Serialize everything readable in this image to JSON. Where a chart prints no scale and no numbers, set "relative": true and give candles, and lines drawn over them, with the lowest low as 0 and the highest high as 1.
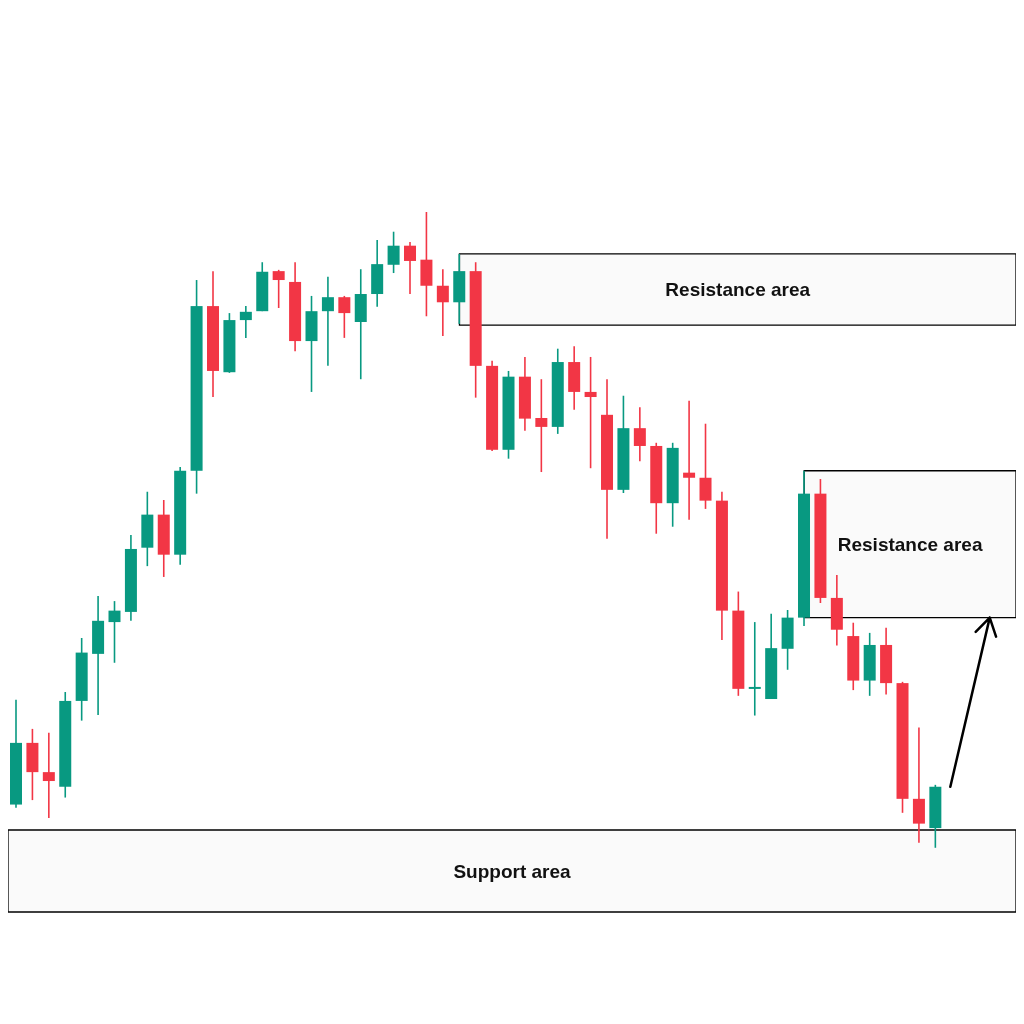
{
  "chart_data": {
    "type": "candlestick",
    "relative": true,
    "categories": [
      null,
      null,
      null,
      null,
      null,
      null,
      null,
      null,
      null,
      null,
      null,
      null,
      null,
      null,
      null,
      null,
      null,
      null,
      null,
      null,
      null,
      null,
      null,
      null,
      null,
      null,
      null,
      null,
      null,
      null,
      null,
      null,
      null,
      null,
      null,
      null,
      null,
      null,
      null,
      null,
      null,
      null,
      null,
      null,
      null,
      null,
      null,
      null,
      null,
      null,
      null,
      null,
      null,
      null,
      null,
      null,
      null
    ],
    "ohlc": [
      [
        0.068,
        0.233,
        0.063,
        0.165
      ],
      [
        0.165,
        0.187,
        0.075,
        0.119
      ],
      [
        0.119,
        0.181,
        0.047,
        0.105
      ],
      [
        0.096,
        0.245,
        0.079,
        0.231
      ],
      [
        0.231,
        0.33,
        0.2,
        0.307
      ],
      [
        0.305,
        0.396,
        0.209,
        0.357
      ],
      [
        0.355,
        0.388,
        0.291,
        0.373
      ],
      [
        0.371,
        0.492,
        0.357,
        0.47
      ],
      [
        0.472,
        0.56,
        0.443,
        0.524
      ],
      [
        0.524,
        0.547,
        0.426,
        0.461
      ],
      [
        0.461,
        0.599,
        0.445,
        0.593
      ],
      [
        0.593,
        0.893,
        0.557,
        0.852
      ],
      [
        0.852,
        0.907,
        0.709,
        0.75
      ],
      [
        0.748,
        0.841,
        0.747,
        0.83
      ],
      [
        0.83,
        0.852,
        0.802,
        0.843
      ],
      [
        0.844,
        0.921,
        0.844,
        0.906
      ],
      [
        0.907,
        0.909,
        0.849,
        0.893
      ],
      [
        0.89,
        0.921,
        0.781,
        0.797
      ],
      [
        0.797,
        0.868,
        0.717,
        0.844
      ],
      [
        0.844,
        0.898,
        0.758,
        0.866
      ],
      [
        0.866,
        0.868,
        0.802,
        0.841
      ],
      [
        0.827,
        0.91,
        0.737,
        0.871
      ],
      [
        0.871,
        0.956,
        0.851,
        0.918
      ],
      [
        0.917,
        0.969,
        0.904,
        0.947
      ],
      [
        0.947,
        0.953,
        0.871,
        0.923
      ],
      [
        0.925,
        1,
        0.836,
        0.884
      ],
      [
        0.884,
        0.91,
        0.805,
        0.858
      ],
      [
        0.858,
        0.934,
        0.824,
        0.907
      ],
      [
        0.907,
        0.921,
        0.708,
        0.758
      ],
      [
        0.758,
        0.766,
        0.624,
        0.626
      ],
      [
        0.626,
        0.75,
        0.612,
        0.741
      ],
      [
        0.741,
        0.772,
        0.656,
        0.675
      ],
      [
        0.676,
        0.737,
        0.591,
        0.662
      ],
      [
        0.662,
        0.785,
        0.651,
        0.764
      ],
      [
        0.764,
        0.789,
        0.689,
        0.717
      ],
      [
        0.717,
        0.772,
        0.597,
        0.709
      ],
      [
        0.681,
        0.737,
        0.486,
        0.563
      ],
      [
        0.563,
        0.711,
        0.558,
        0.66
      ],
      [
        0.66,
        0.693,
        0.608,
        0.632
      ],
      [
        0.632,
        0.637,
        0.494,
        0.542
      ],
      [
        0.542,
        0.637,
        0.505,
        0.629
      ],
      [
        0.59,
        0.703,
        0.516,
        0.582
      ],
      [
        0.582,
        0.667,
        0.533,
        0.546
      ],
      [
        0.546,
        0.56,
        0.327,
        0.373
      ],
      [
        0.373,
        0.403,
        0.239,
        0.25
      ],
      [
        0.25,
        0.355,
        0.208,
        0.253
      ],
      [
        0.234,
        0.368,
        0.234,
        0.314
      ],
      [
        0.313,
        0.374,
        0.28,
        0.362
      ],
      [
        0.362,
        0.593,
        0.349,
        0.557
      ],
      [
        0.557,
        0.58,
        0.385,
        0.393
      ],
      [
        0.393,
        0.429,
        0.318,
        0.343
      ],
      [
        0.333,
        0.354,
        0.248,
        0.263
      ],
      [
        0.263,
        0.338,
        0.239,
        0.319
      ],
      [
        0.319,
        0.346,
        0.241,
        0.259
      ],
      [
        0.259,
        0.261,
        0.055,
        0.077
      ],
      [
        0.077,
        0.189,
        0.008,
        0.038
      ],
      [
        0.031,
        0.099,
        0,
        0.096
      ]
    ],
    "colors": [
      "#089981",
      "#f23645",
      "#f23645",
      "#089981",
      "#089981",
      "#089981",
      "#089981",
      "#089981",
      "#089981",
      "#f23645",
      "#089981",
      "#089981",
      "#f23645",
      "#089981",
      "#089981",
      "#089981",
      "#f23645",
      "#f23645",
      "#089981",
      "#089981",
      "#f23645",
      "#089981",
      "#089981",
      "#089981",
      "#f23645",
      "#f23645",
      "#f23645",
      "#089981",
      "#f23645",
      "#f23645",
      "#089981",
      "#f23645",
      "#f23645",
      "#089981",
      "#f23645",
      "#f23645",
      "#f23645",
      "#089981",
      "#f23645",
      "#f23645",
      "#089981",
      "#f23645",
      "#f23645",
      "#f23645",
      "#f23645",
      "#089981",
      "#089981",
      "#089981",
      "#089981",
      "#f23645",
      "#f23645",
      "#f23645",
      "#089981",
      "#f23645",
      "#f23645",
      "#f23645",
      "#089981"
    ],
    "bands": [
      {
        "axis": "y",
        "from": 0.822,
        "to": 0.934,
        "label": "Resistance area"
      },
      {
        "axis": "y",
        "from": 0.362,
        "to": 0.593,
        "label": "Resistance area"
      },
      {
        "axis": "y",
        "from": -0.101,
        "to": 0.028,
        "label": "Support area"
      }
    ]
  }
}
